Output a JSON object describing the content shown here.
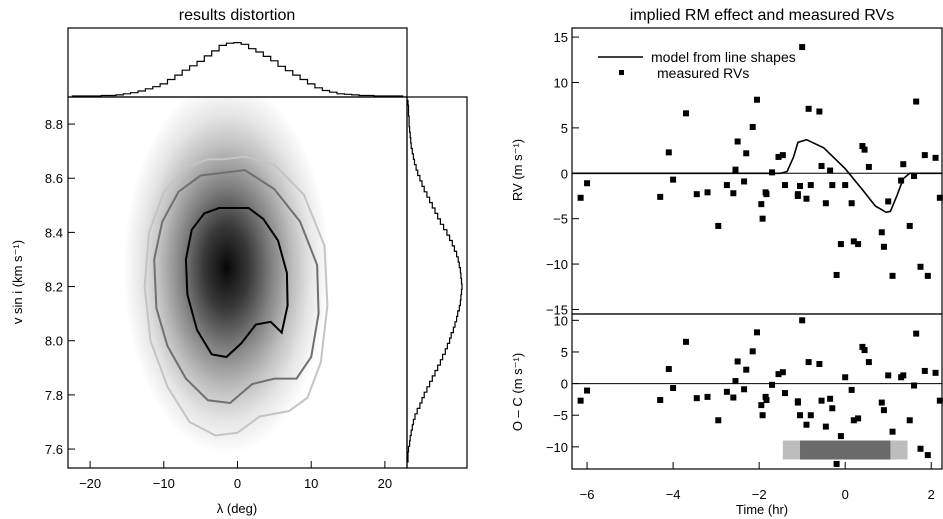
{
  "chart_data": [
    {
      "type": "heatmap",
      "title": "results distortion",
      "xlabel": "λ (deg)",
      "ylabel": "v sin i (km s⁻¹)",
      "xlim": [
        -23,
        23
      ],
      "ylim": [
        7.53,
        8.9
      ],
      "xticks": [
        -20,
        -10,
        0,
        10,
        20
      ],
      "xtick_labels": [
        "−20",
        "−10",
        "0",
        "10",
        "20"
      ],
      "yticks": [
        7.6,
        7.8,
        8.0,
        8.2,
        8.4,
        8.6,
        8.8
      ],
      "ytick_labels": [
        "7.6",
        "7.8",
        "8.0",
        "8.2",
        "8.4",
        "8.6",
        "8.8"
      ],
      "peak": {
        "x": -1.5,
        "y": 8.27
      },
      "contour_colors": [
        "#000000",
        "#707070",
        "#c4c4c4"
      ],
      "contours": [
        {
          "level": "inner",
          "points": [
            [
              -1,
              8.49
            ],
            [
              1.5,
              8.49
            ],
            [
              3.5,
              8.45
            ],
            [
              5.5,
              8.37
            ],
            [
              6.7,
              8.25
            ],
            [
              6.8,
              8.13
            ],
            [
              6,
              8.03
            ],
            [
              4.5,
              8.07
            ],
            [
              2.5,
              8.06
            ],
            [
              0.5,
              7.99
            ],
            [
              -1.5,
              7.94
            ],
            [
              -3.5,
              7.95
            ],
            [
              -5.5,
              8.04
            ],
            [
              -6.8,
              8.17
            ],
            [
              -7,
              8.3
            ],
            [
              -6.2,
              8.41
            ],
            [
              -4.5,
              8.47
            ],
            [
              -2.5,
              8.49
            ]
          ]
        },
        {
          "level": "middle",
          "points": [
            [
              -2,
              8.62
            ],
            [
              1,
              8.63
            ],
            [
              5,
              8.56
            ],
            [
              8.5,
              8.44
            ],
            [
              10.8,
              8.28
            ],
            [
              11,
              8.1
            ],
            [
              10,
              7.94
            ],
            [
              8,
              7.86
            ],
            [
              5,
              7.86
            ],
            [
              2,
              7.84
            ],
            [
              -1,
              7.77
            ],
            [
              -4,
              7.78
            ],
            [
              -7,
              7.86
            ],
            [
              -9.5,
              7.98
            ],
            [
              -11,
              8.12
            ],
            [
              -11.3,
              8.3
            ],
            [
              -10.2,
              8.44
            ],
            [
              -8,
              8.55
            ],
            [
              -5,
              8.61
            ]
          ]
        },
        {
          "level": "outer",
          "points": [
            [
              -2,
              8.67
            ],
            [
              1,
              8.68
            ],
            [
              5,
              8.65
            ],
            [
              9,
              8.54
            ],
            [
              11.8,
              8.35
            ],
            [
              12.2,
              8.13
            ],
            [
              11.3,
              7.92
            ],
            [
              9.5,
              7.79
            ],
            [
              7,
              7.74
            ],
            [
              3,
              7.72
            ],
            [
              0,
              7.66
            ],
            [
              -3,
              7.65
            ],
            [
              -6.5,
              7.7
            ],
            [
              -9.5,
              7.83
            ],
            [
              -11.8,
              8
            ],
            [
              -12.6,
              8.2
            ],
            [
              -12,
              8.4
            ],
            [
              -10,
              8.55
            ],
            [
              -7,
              8.64
            ],
            [
              -4,
              8.67
            ]
          ]
        }
      ]
    },
    {
      "type": "histogram",
      "x": [
        -22,
        -21,
        -20,
        -19,
        -18,
        -17,
        -16,
        -15,
        -14,
        -13,
        -12,
        -11,
        -10,
        -9,
        -8,
        -7,
        -6,
        -5,
        -4,
        -3,
        -2,
        -1,
        0,
        1,
        2,
        3,
        4,
        5,
        6,
        7,
        8,
        9,
        10,
        11,
        12,
        13,
        14,
        15,
        16,
        17,
        18,
        19,
        20,
        21,
        22
      ],
      "values": [
        0,
        0,
        0,
        0,
        0.01,
        0.01,
        0.02,
        0.04,
        0.06,
        0.09,
        0.13,
        0.17,
        0.22,
        0.3,
        0.38,
        0.47,
        0.55,
        0.63,
        0.73,
        0.82,
        0.92,
        0.96,
        0.97,
        0.94,
        0.86,
        0.8,
        0.72,
        0.64,
        0.54,
        0.46,
        0.38,
        0.3,
        0.22,
        0.15,
        0.1,
        0.07,
        0.04,
        0.03,
        0.02,
        0.01,
        0.01,
        0,
        0,
        0,
        0
      ]
    },
    {
      "type": "histogram",
      "y": [
        7.56,
        7.58,
        7.6,
        7.62,
        7.64,
        7.66,
        7.68,
        7.7,
        7.72,
        7.74,
        7.76,
        7.78,
        7.8,
        7.82,
        7.84,
        7.86,
        7.88,
        7.9,
        7.92,
        7.94,
        7.96,
        7.98,
        8,
        8.02,
        8.04,
        8.06,
        8.08,
        8.1,
        8.12,
        8.14,
        8.16,
        8.18,
        8.2,
        8.22,
        8.24,
        8.26,
        8.28,
        8.3,
        8.32,
        8.34,
        8.36,
        8.38,
        8.4,
        8.42,
        8.44,
        8.46,
        8.48,
        8.5,
        8.52,
        8.54,
        8.56,
        8.58,
        8.6,
        8.62,
        8.64,
        8.66,
        8.68,
        8.7,
        8.72,
        8.74,
        8.76,
        8.78,
        8.8,
        8.82,
        8.84,
        8.86,
        8.88
      ],
      "values": [
        0,
        0,
        0.01,
        0.03,
        0.04,
        0.06,
        0.08,
        0.1,
        0.13,
        0.17,
        0.22,
        0.26,
        0.3,
        0.35,
        0.4,
        0.45,
        0.5,
        0.55,
        0.6,
        0.64,
        0.69,
        0.73,
        0.77,
        0.8,
        0.84,
        0.87,
        0.9,
        0.92,
        0.95,
        0.97,
        0.98,
        0.99,
        1,
        0.99,
        0.98,
        0.97,
        0.95,
        0.93,
        0.9,
        0.86,
        0.82,
        0.77,
        0.72,
        0.66,
        0.6,
        0.55,
        0.5,
        0.45,
        0.4,
        0.35,
        0.3,
        0.26,
        0.22,
        0.18,
        0.15,
        0.12,
        0.1,
        0.08,
        0.06,
        0.05,
        0.04,
        0.03,
        0.02,
        0.02,
        0.01,
        0.01,
        0
      ]
    },
    {
      "type": "scatter",
      "title": "implied RM effect and measured RVs",
      "ylabel": "RV (m s⁻¹)",
      "xlim": [
        -6.35,
        2.25
      ],
      "ylim": [
        -15.5,
        16
      ],
      "yticks": [
        -15,
        -10,
        -5,
        0,
        5,
        10,
        15
      ],
      "ytick_labels": [
        "−15",
        "−10",
        "−5",
        "0",
        "5",
        "10",
        "15"
      ],
      "legend": [
        {
          "label": "model from line shapes",
          "style": "line"
        },
        {
          "label": "measured RVs",
          "style": "marker"
        }
      ],
      "points": [
        [
          -6.15,
          -2.7
        ],
        [
          -6,
          -1.1
        ],
        [
          -4.3,
          -2.6
        ],
        [
          -4.1,
          2.3
        ],
        [
          -4,
          -0.7
        ],
        [
          -3.7,
          6.6
        ],
        [
          -3.45,
          -2.3
        ],
        [
          -3.2,
          -2.1
        ],
        [
          -2.95,
          -5.8
        ],
        [
          -2.75,
          -1.3
        ],
        [
          -2.6,
          -2.2
        ],
        [
          -2.55,
          0.4
        ],
        [
          -2.5,
          3.5
        ],
        [
          -2.35,
          -0.9
        ],
        [
          -2.3,
          2.2
        ],
        [
          -2.15,
          5.1
        ],
        [
          -2.05,
          8.1
        ],
        [
          -1.95,
          -3.4
        ],
        [
          -1.92,
          -5
        ],
        [
          -1.85,
          -2.1
        ],
        [
          -1.7,
          0.1
        ],
        [
          -1.55,
          1.8
        ],
        [
          -1.45,
          2
        ],
        [
          -1.4,
          -1.3
        ],
        [
          -1.1,
          -2.3
        ],
        [
          -1.1,
          -2.5
        ],
        [
          -1.05,
          -1.4
        ],
        [
          -1,
          13.9
        ],
        [
          -0.9,
          -2.8
        ],
        [
          -0.85,
          7.1
        ],
        [
          -0.8,
          -1.3
        ],
        [
          -0.6,
          6.8
        ],
        [
          -0.55,
          0.8
        ],
        [
          -0.45,
          -3.3
        ],
        [
          -0.35,
          0.3
        ],
        [
          -0.3,
          -1.3
        ],
        [
          -0.1,
          -7.8
        ],
        [
          0,
          -1.3
        ],
        [
          0.15,
          -3.3
        ],
        [
          0.2,
          -7.5
        ],
        [
          0.3,
          -7.8
        ],
        [
          0.4,
          3
        ],
        [
          0.45,
          2.6
        ],
        [
          0.55,
          0.7
        ],
        [
          0.85,
          -6.5
        ],
        [
          0.9,
          -8.1
        ],
        [
          1,
          -3.1
        ],
        [
          1.1,
          -11.3
        ],
        [
          1.3,
          -0.8
        ],
        [
          1.35,
          1
        ],
        [
          1.5,
          -5.8
        ],
        [
          1.6,
          -0.3
        ],
        [
          1.65,
          7.9
        ],
        [
          1.75,
          -10.3
        ],
        [
          1.85,
          2
        ],
        [
          1.92,
          -11.3
        ],
        [
          2.1,
          1.7
        ],
        [
          2.2,
          -2.7
        ],
        [
          -1.83,
          -2.3
        ],
        [
          -0.2,
          -11.2
        ]
      ],
      "model": {
        "x": [
          -6.35,
          -1.5,
          -1.35,
          -1.2,
          -1.1,
          -0.9,
          -0.5,
          0,
          0.4,
          0.7,
          0.95,
          1.05,
          1.2,
          1.35,
          1.5,
          2.25
        ],
        "y": [
          0,
          0,
          0.2,
          1.8,
          3.4,
          3.7,
          2.8,
          0.5,
          -1.8,
          -3.6,
          -4.3,
          -4.2,
          -2.5,
          -0.6,
          0,
          0
        ]
      }
    },
    {
      "type": "scatter",
      "xlabel": "Time (hr)",
      "ylabel": "O – C (m s⁻¹)",
      "xlim": [
        -6.35,
        2.25
      ],
      "ylim": [
        -13.5,
        11
      ],
      "xticks": [
        -6,
        -4,
        -2,
        0,
        2
      ],
      "xtick_labels": [
        "−6",
        "−4",
        "−2",
        "0",
        "2"
      ],
      "yticks": [
        -10,
        -5,
        0,
        5,
        10
      ],
      "ytick_labels": [
        "−10",
        "−5",
        "0",
        "5",
        "10"
      ],
      "transit": {
        "t14": [
          -1.45,
          1.45
        ],
        "t23": [
          -1.05,
          1.05
        ],
        "y": [
          -12,
          -9
        ]
      },
      "points": [
        [
          -6.15,
          -2.7
        ],
        [
          -6,
          -1.1
        ],
        [
          -4.3,
          -2.6
        ],
        [
          -4.1,
          2.3
        ],
        [
          -4,
          -0.7
        ],
        [
          -3.7,
          6.6
        ],
        [
          -3.45,
          -2.3
        ],
        [
          -3.2,
          -2.1
        ],
        [
          -2.95,
          -5.8
        ],
        [
          -2.75,
          -1.3
        ],
        [
          -2.6,
          -2.2
        ],
        [
          -2.55,
          0.4
        ],
        [
          -2.5,
          3.5
        ],
        [
          -2.35,
          -0.9
        ],
        [
          -2.3,
          2.2
        ],
        [
          -2.15,
          5.1
        ],
        [
          -2.05,
          8.1
        ],
        [
          -1.95,
          -3.4
        ],
        [
          -1.92,
          -5
        ],
        [
          -1.85,
          -2.1
        ],
        [
          -1.7,
          -0.2
        ],
        [
          -1.55,
          1.5
        ],
        [
          -1.45,
          1.8
        ],
        [
          -1.4,
          -1.5
        ],
        [
          -1.1,
          -2.8
        ],
        [
          -1.1,
          -3
        ],
        [
          -1.05,
          -5
        ],
        [
          -1,
          10
        ],
        [
          -0.9,
          -6.5
        ],
        [
          -0.85,
          3.4
        ],
        [
          -0.8,
          -5
        ],
        [
          -0.6,
          3.1
        ],
        [
          -0.55,
          -2.7
        ],
        [
          -0.45,
          -6.8
        ],
        [
          -0.35,
          -2.4
        ],
        [
          -0.3,
          -3.9
        ],
        [
          -0.1,
          -8.3
        ],
        [
          0,
          1
        ],
        [
          0.15,
          -1
        ],
        [
          0.2,
          -5.8
        ],
        [
          0.3,
          -5.5
        ],
        [
          0.4,
          5.8
        ],
        [
          0.45,
          5.3
        ],
        [
          0.55,
          3.4
        ],
        [
          0.85,
          -3
        ],
        [
          0.9,
          -4.2
        ],
        [
          1,
          1.3
        ],
        [
          1.1,
          -7.6
        ],
        [
          1.3,
          1
        ],
        [
          1.35,
          1.3
        ],
        [
          1.5,
          -5.8
        ],
        [
          1.6,
          -0.3
        ],
        [
          1.65,
          7.9
        ],
        [
          1.75,
          -10.3
        ],
        [
          1.85,
          2
        ],
        [
          1.92,
          -11.3
        ],
        [
          2.1,
          1.7
        ],
        [
          2.2,
          -2.7
        ],
        [
          -1.83,
          -2.6
        ],
        [
          -0.2,
          -12.7
        ]
      ]
    }
  ]
}
